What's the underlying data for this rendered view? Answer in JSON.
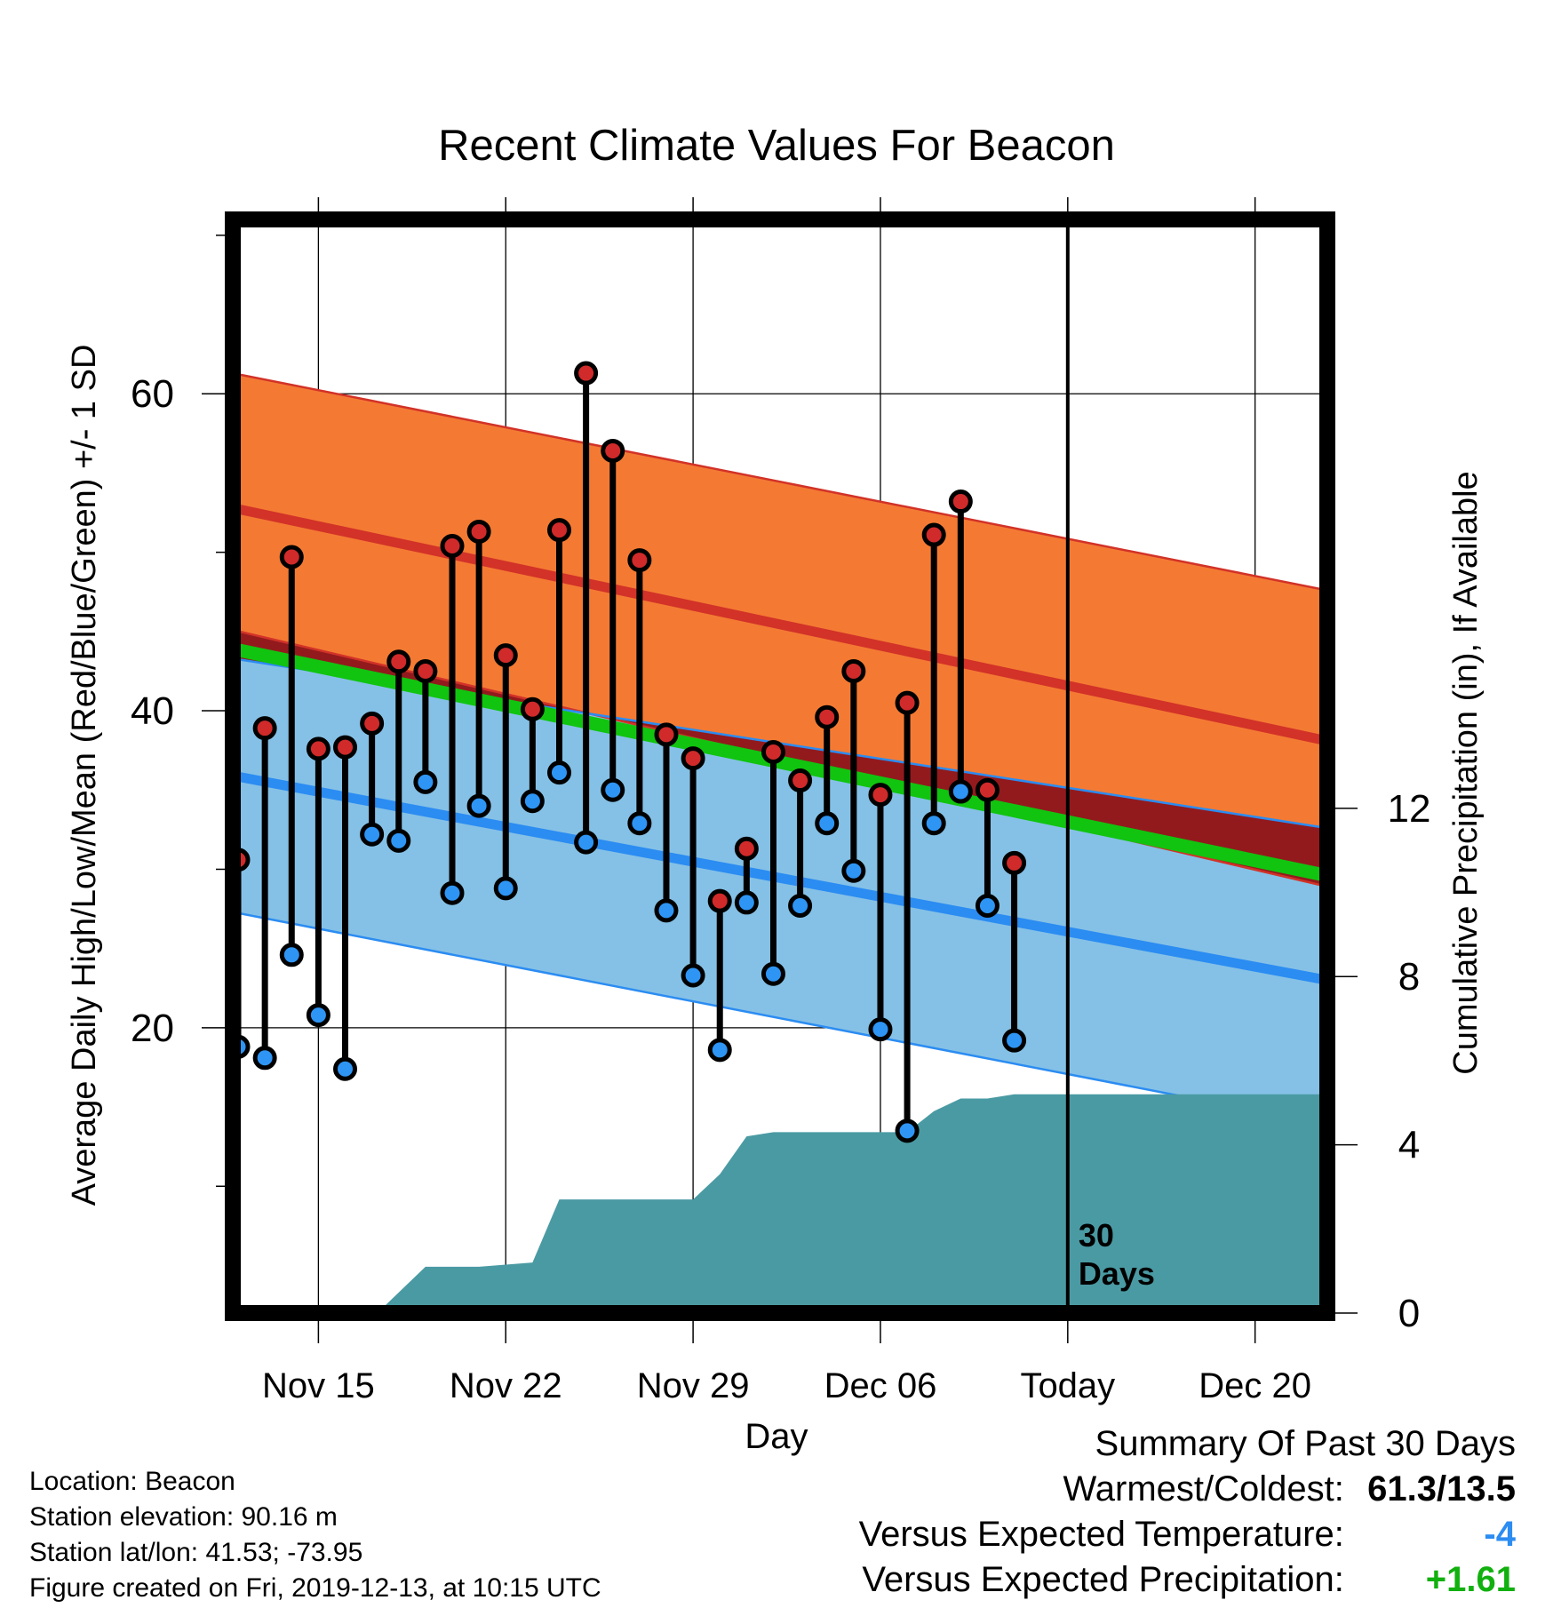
{
  "chart_data": {
    "type": "line",
    "title": "Recent Climate Values For Beacon",
    "xlabel": "Day",
    "ylabel": "Average Daily High/Low/Mean (Red/Blue/Green) +/- 1 SD",
    "y2label": "Cumulative Precipitation (in), If Available",
    "x_ticks": [
      "Nov 15",
      "Nov 22",
      "Nov 29",
      "Dec 06",
      "Today",
      "Dec 20"
    ],
    "x_tick_days": [
      15,
      22,
      29,
      36,
      43,
      50
    ],
    "xlim": [
      11.8,
      52.7
    ],
    "ylim": [
      2,
      71
    ],
    "y_ticks": [
      20,
      40,
      60
    ],
    "y2lim": [
      0,
      26
    ],
    "y2_ticks": [
      0,
      4,
      8,
      12
    ],
    "today_day": 43,
    "today_label": "30\nDays",
    "grid": true,
    "normals": {
      "days": [
        11.8,
        52.7
      ],
      "high_mean": [
        52.8,
        38.1
      ],
      "high_sd_upper": [
        61.3,
        47.6
      ],
      "high_sd_lower": [
        45.1,
        28.9
      ],
      "low_mean": [
        35.9,
        23.0
      ],
      "low_sd_upper": [
        43.3,
        32.6
      ],
      "low_sd_lower": [
        27.3,
        13.9
      ],
      "mean_line": [
        43.9,
        29.6
      ]
    },
    "daily": {
      "days": [
        12,
        13,
        14,
        15,
        16,
        17,
        18,
        19,
        20,
        21,
        22,
        23,
        24,
        25,
        26,
        27,
        28,
        29,
        30,
        31,
        32,
        33,
        34,
        35,
        36,
        37,
        38,
        39,
        40,
        41
      ],
      "highs": [
        30.6,
        38.9,
        49.7,
        37.6,
        37.7,
        39.2,
        43.1,
        42.5,
        50.4,
        51.3,
        43.5,
        40.1,
        51.4,
        61.3,
        56.4,
        49.5,
        38.5,
        37.0,
        28.0,
        31.3,
        37.4,
        35.6,
        39.6,
        42.5,
        34.7,
        40.5,
        51.1,
        53.2,
        35.0,
        30.4
      ],
      "lows": [
        18.8,
        18.1,
        24.6,
        20.8,
        17.4,
        32.2,
        31.8,
        35.5,
        28.5,
        34.0,
        28.8,
        34.3,
        36.1,
        31.7,
        35.0,
        32.9,
        27.4,
        23.3,
        18.6,
        27.9,
        23.4,
        27.7,
        32.9,
        29.9,
        19.9,
        13.5,
        32.9,
        34.9,
        27.7,
        19.2
      ]
    },
    "precip": {
      "days": [
        11.8,
        17.2,
        19.0,
        21.0,
        23.0,
        24.0,
        25.0,
        29.0,
        30.0,
        31.0,
        32.0,
        33.0,
        34.0,
        35.0,
        36.0,
        37.0,
        38.0,
        39.0,
        40.0,
        41.0,
        52.7
      ],
      "cumulative": [
        0,
        0,
        1.1,
        1.1,
        1.2,
        2.7,
        2.7,
        2.7,
        3.3,
        4.2,
        4.3,
        4.3,
        4.3,
        4.3,
        4.3,
        4.3,
        4.8,
        5.1,
        5.1,
        5.2,
        5.2
      ]
    },
    "colors": {
      "high_band": "#f47a33",
      "high_line": "#d23228",
      "low_band": "#85c1e6",
      "low_line": "#2b8cf2",
      "overlap": "#921a1d",
      "mean_line": "#11c40f",
      "precip": "#4a9aa3",
      "high_marker": "#d12a2a",
      "low_marker": "#2e95f5"
    }
  },
  "station": {
    "location": "Location: Beacon",
    "elevation": "Station elevation: 90.16 m",
    "latlon": "Station lat/lon: 41.53; -73.95",
    "created": "Figure created on Fri, 2019-12-13, at 10:15 UTC"
  },
  "summary": {
    "title": "Summary Of Past 30 Days",
    "warm_cold_label": "Warmest/Coldest:",
    "warm_cold_value": "61.3/13.5",
    "temp_label": "Versus Expected Temperature:",
    "temp_value": "-4",
    "temp_color": "#2b8cf2",
    "precip_label": "Versus Expected Precipitation:",
    "precip_value": "+1.61",
    "precip_color": "#11b00f"
  }
}
